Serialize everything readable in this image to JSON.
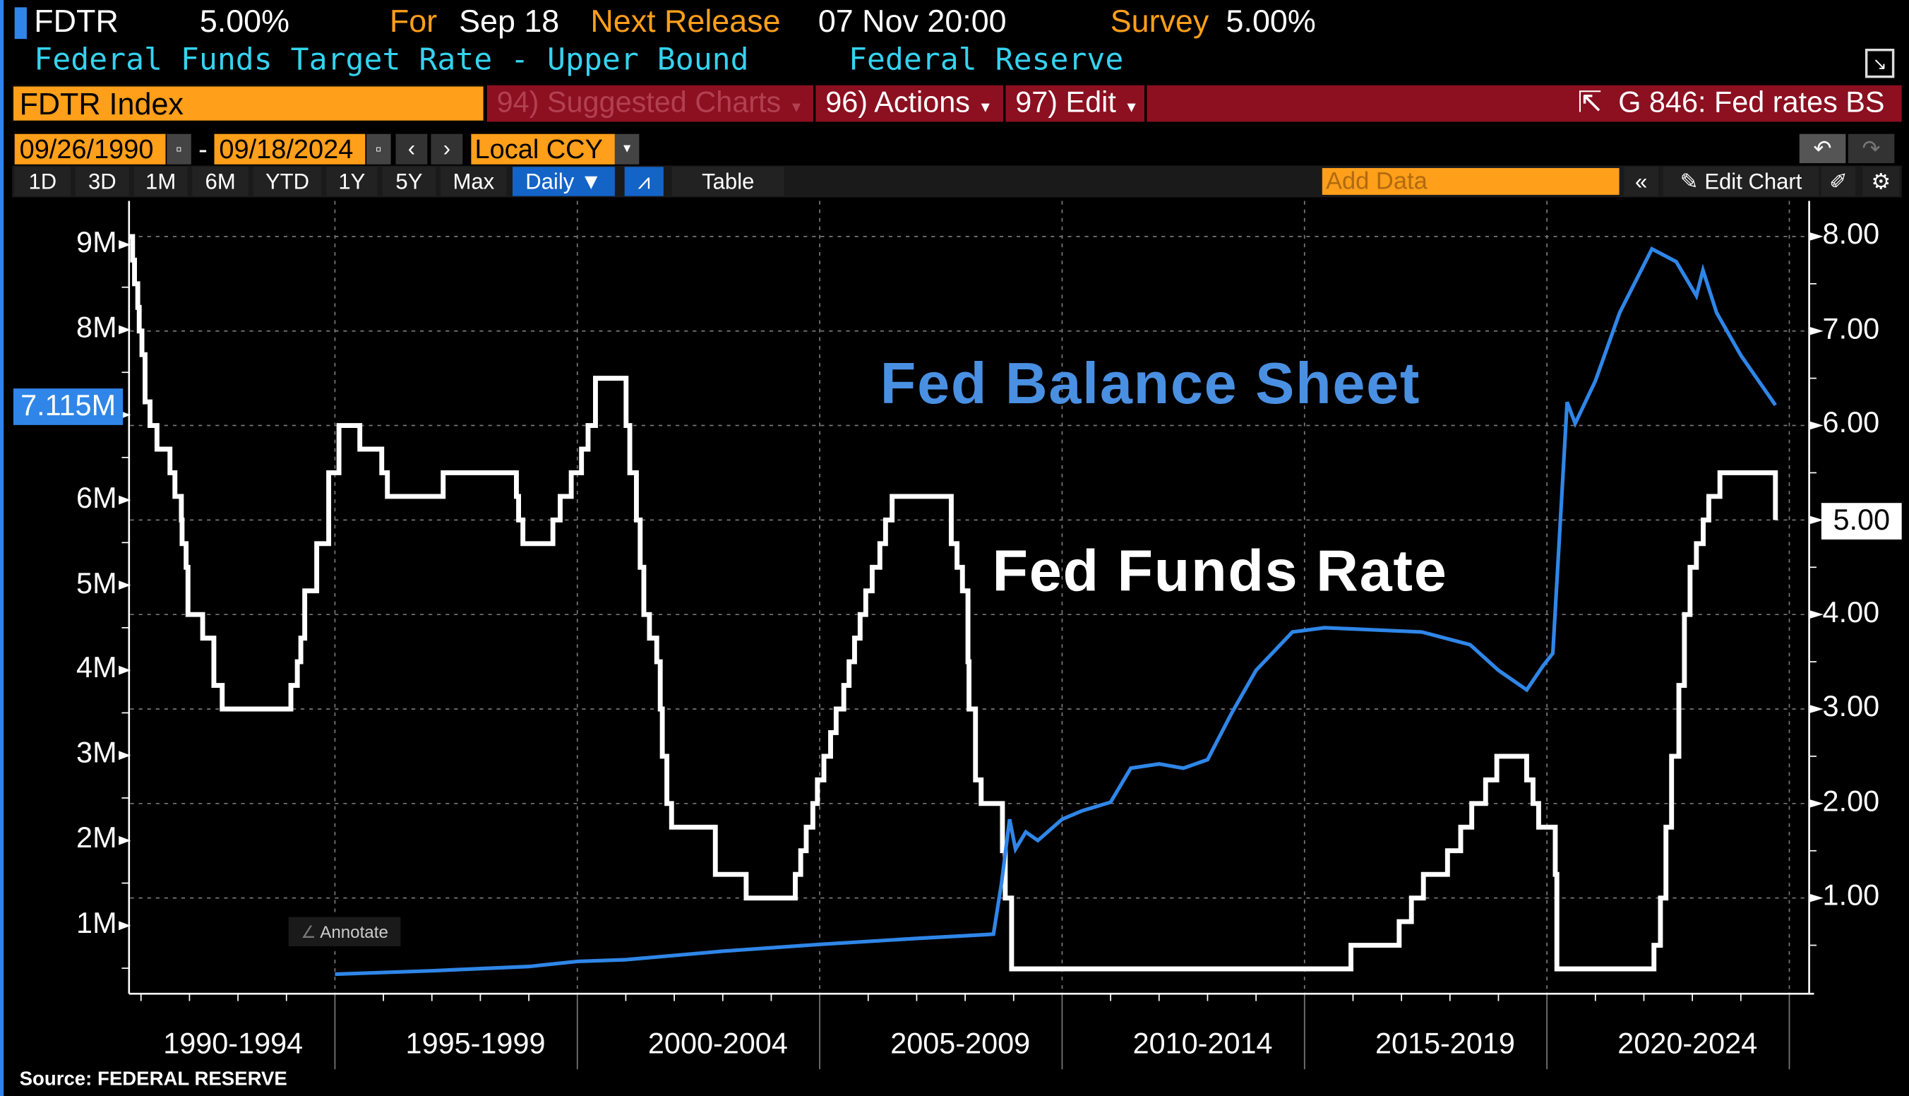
{
  "header": {
    "ticker": "FDTR",
    "value": "5.00%",
    "for_label": "For",
    "for_date": "Sep 18",
    "next_label": "Next Release",
    "next_date": "07 Nov 20:00",
    "survey_label": "Survey",
    "survey_value": "5.00%",
    "description": "Federal Funds Target Rate - Upper Bound",
    "source_name": "Federal Reserve"
  },
  "command": {
    "security": "FDTR Index",
    "suggested": "94) Suggested Charts",
    "actions": "96) Actions",
    "edit": "97) Edit",
    "chart_name": "G 846: Fed rates BS"
  },
  "dates": {
    "start": "09/26/1990",
    "sep": "-",
    "end": "09/18/2024",
    "currency": "Local CCY"
  },
  "toolbar": {
    "periods": [
      "1D",
      "3D",
      "1M",
      "6M",
      "YTD",
      "1Y",
      "5Y",
      "Max"
    ],
    "frequency": "Daily ▼",
    "table": "Table",
    "add_data_placeholder": "Add Data",
    "edit_chart": "Edit Chart"
  },
  "annotate": "Annotate",
  "source": "Source: FEDERAL RESERVE",
  "colors": {
    "balance": "#2f86e8",
    "rate": "#ffffff",
    "title_blue": "#4a90e2",
    "accent_orange": "#ff9f1a",
    "bar_red": "#8c1020"
  },
  "chart_data": {
    "type": "line",
    "x_tick_labels": [
      "1990-1994",
      "1995-1999",
      "2000-2004",
      "2005-2009",
      "2010-2014",
      "2015-2019",
      "2020-2024"
    ],
    "left_axis": {
      "unit": "M",
      "ticks": [
        "1M",
        "2M",
        "3M",
        "4M",
        "5M",
        "6M",
        "8M",
        "9M"
      ],
      "range": [
        0,
        9.3
      ],
      "last_value_label": "7.115M"
    },
    "right_axis": {
      "ticks": [
        "1.00",
        "2.00",
        "3.00",
        "4.00",
        "6.00",
        "7.00",
        "8.00"
      ],
      "range": [
        0,
        8.2
      ],
      "last_value_label": "5.00"
    },
    "series": [
      {
        "name": "Fed Funds Rate",
        "axis": "right",
        "step": true,
        "points": [
          [
            "1990-09-26",
            8.0
          ],
          [
            "1990-10-29",
            7.75
          ],
          [
            "1990-11-13",
            7.5
          ],
          [
            "1990-12-07",
            7.25
          ],
          [
            "1990-12-18",
            7.0
          ],
          [
            "1991-01-08",
            6.75
          ],
          [
            "1991-02-01",
            6.25
          ],
          [
            "1991-03-08",
            6.0
          ],
          [
            "1991-04-30",
            5.75
          ],
          [
            "1991-08-06",
            5.5
          ],
          [
            "1991-09-13",
            5.25
          ],
          [
            "1991-10-31",
            5.0
          ],
          [
            "1991-11-06",
            4.75
          ],
          [
            "1991-12-06",
            4.5
          ],
          [
            "1991-12-20",
            4.0
          ],
          [
            "1992-04-09",
            3.75
          ],
          [
            "1992-07-02",
            3.25
          ],
          [
            "1992-09-04",
            3.0
          ],
          [
            "1994-02-04",
            3.25
          ],
          [
            "1994-03-22",
            3.5
          ],
          [
            "1994-04-18",
            3.75
          ],
          [
            "1994-05-17",
            4.25
          ],
          [
            "1994-08-16",
            4.75
          ],
          [
            "1994-11-15",
            5.5
          ],
          [
            "1995-02-01",
            6.0
          ],
          [
            "1995-07-06",
            5.75
          ],
          [
            "1995-12-19",
            5.5
          ],
          [
            "1996-01-31",
            5.25
          ],
          [
            "1997-03-25",
            5.5
          ],
          [
            "1998-09-29",
            5.25
          ],
          [
            "1998-10-15",
            5.0
          ],
          [
            "1998-11-17",
            4.75
          ],
          [
            "1999-06-30",
            5.0
          ],
          [
            "1999-08-24",
            5.25
          ],
          [
            "1999-11-16",
            5.5
          ],
          [
            "2000-02-02",
            5.75
          ],
          [
            "2000-03-21",
            6.0
          ],
          [
            "2000-05-16",
            6.5
          ],
          [
            "2001-01-03",
            6.0
          ],
          [
            "2001-01-31",
            5.5
          ],
          [
            "2001-03-20",
            5.0
          ],
          [
            "2001-04-18",
            4.5
          ],
          [
            "2001-05-15",
            4.0
          ],
          [
            "2001-06-27",
            3.75
          ],
          [
            "2001-08-21",
            3.5
          ],
          [
            "2001-09-17",
            3.0
          ],
          [
            "2001-10-02",
            2.5
          ],
          [
            "2001-11-06",
            2.0
          ],
          [
            "2001-12-11",
            1.75
          ],
          [
            "2002-11-06",
            1.25
          ],
          [
            "2003-06-25",
            1.0
          ],
          [
            "2004-06-30",
            1.25
          ],
          [
            "2004-08-10",
            1.5
          ],
          [
            "2004-09-21",
            1.75
          ],
          [
            "2004-11-10",
            2.0
          ],
          [
            "2004-12-14",
            2.25
          ],
          [
            "2005-02-02",
            2.5
          ],
          [
            "2005-03-22",
            2.75
          ],
          [
            "2005-05-03",
            3.0
          ],
          [
            "2005-06-30",
            3.25
          ],
          [
            "2005-08-09",
            3.5
          ],
          [
            "2005-09-20",
            3.75
          ],
          [
            "2005-11-01",
            4.0
          ],
          [
            "2005-12-13",
            4.25
          ],
          [
            "2006-01-31",
            4.5
          ],
          [
            "2006-03-28",
            4.75
          ],
          [
            "2006-05-10",
            5.0
          ],
          [
            "2006-06-29",
            5.25
          ],
          [
            "2007-09-18",
            4.75
          ],
          [
            "2007-10-31",
            4.5
          ],
          [
            "2007-12-11",
            4.25
          ],
          [
            "2008-01-22",
            3.5
          ],
          [
            "2008-01-30",
            3.0
          ],
          [
            "2008-03-18",
            2.25
          ],
          [
            "2008-04-30",
            2.0
          ],
          [
            "2008-10-08",
            1.5
          ],
          [
            "2008-10-29",
            1.0
          ],
          [
            "2008-12-16",
            0.25
          ],
          [
            "2015-12-16",
            0.5
          ],
          [
            "2016-12-14",
            0.75
          ],
          [
            "2017-03-15",
            1.0
          ],
          [
            "2017-06-14",
            1.25
          ],
          [
            "2017-12-13",
            1.5
          ],
          [
            "2018-03-21",
            1.75
          ],
          [
            "2018-06-13",
            2.0
          ],
          [
            "2018-09-26",
            2.25
          ],
          [
            "2018-12-19",
            2.5
          ],
          [
            "2019-07-31",
            2.25
          ],
          [
            "2019-09-18",
            2.0
          ],
          [
            "2019-10-30",
            1.75
          ],
          [
            "2020-03-03",
            1.25
          ],
          [
            "2020-03-15",
            0.25
          ],
          [
            "2022-03-16",
            0.5
          ],
          [
            "2022-05-04",
            1.0
          ],
          [
            "2022-06-15",
            1.75
          ],
          [
            "2022-07-27",
            2.5
          ],
          [
            "2022-09-21",
            3.25
          ],
          [
            "2022-11-02",
            4.0
          ],
          [
            "2022-12-14",
            4.5
          ],
          [
            "2023-02-01",
            4.75
          ],
          [
            "2023-03-22",
            5.0
          ],
          [
            "2023-05-03",
            5.25
          ],
          [
            "2023-07-26",
            5.5
          ],
          [
            "2024-09-18",
            5.0
          ]
        ]
      },
      {
        "name": "Fed Balance Sheet",
        "axis": "left",
        "step": false,
        "points": [
          [
            "1995-01-01",
            0.43
          ],
          [
            "1997-01-01",
            0.47
          ],
          [
            "1999-01-01",
            0.52
          ],
          [
            "2000-01-01",
            0.58
          ],
          [
            "2001-01-01",
            0.6
          ],
          [
            "2003-01-01",
            0.7
          ],
          [
            "2005-01-01",
            0.78
          ],
          [
            "2007-01-01",
            0.85
          ],
          [
            "2008-08-01",
            0.9
          ],
          [
            "2008-10-01",
            1.5
          ],
          [
            "2008-12-01",
            2.25
          ],
          [
            "2009-01-15",
            1.9
          ],
          [
            "2009-04-01",
            2.1
          ],
          [
            "2009-07-01",
            2.0
          ],
          [
            "2010-01-01",
            2.25
          ],
          [
            "2010-06-01",
            2.35
          ],
          [
            "2011-01-01",
            2.45
          ],
          [
            "2011-06-01",
            2.85
          ],
          [
            "2012-01-01",
            2.9
          ],
          [
            "2012-07-01",
            2.85
          ],
          [
            "2013-01-01",
            2.95
          ],
          [
            "2013-07-01",
            3.5
          ],
          [
            "2014-01-01",
            4.0
          ],
          [
            "2014-10-01",
            4.45
          ],
          [
            "2015-06-01",
            4.5
          ],
          [
            "2017-06-01",
            4.45
          ],
          [
            "2018-06-01",
            4.3
          ],
          [
            "2019-01-01",
            4.0
          ],
          [
            "2019-08-01",
            3.77
          ],
          [
            "2019-12-01",
            4.05
          ],
          [
            "2020-02-15",
            4.2
          ],
          [
            "2020-06-01",
            7.15
          ],
          [
            "2020-08-01",
            6.9
          ],
          [
            "2021-01-01",
            7.4
          ],
          [
            "2021-07-01",
            8.2
          ],
          [
            "2022-03-01",
            8.95
          ],
          [
            "2022-09-01",
            8.8
          ],
          [
            "2023-02-01",
            8.4
          ],
          [
            "2023-03-20",
            8.7
          ],
          [
            "2023-07-01",
            8.2
          ],
          [
            "2024-01-01",
            7.7
          ],
          [
            "2024-09-18",
            7.115
          ]
        ]
      }
    ],
    "annotations": [
      "Fed Balance Sheet",
      "Fed Funds Rate"
    ]
  }
}
